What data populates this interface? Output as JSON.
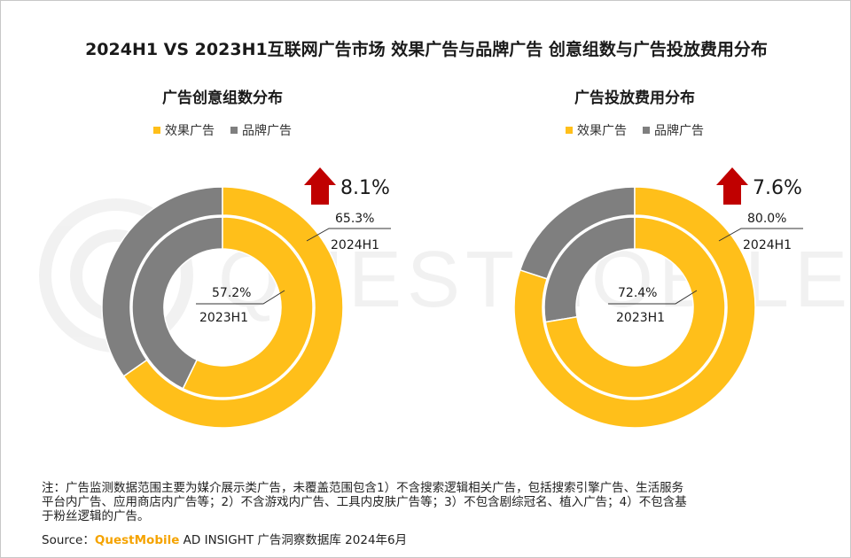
{
  "title": "2024H1 VS 2023H1互联网广告市场 效果广告与品牌广告 创意组数与广告投放费用分布",
  "colors": {
    "performance": "#FFBF1A",
    "brand": "#7F7F7F",
    "arrow": "#C00000"
  },
  "watermark_text": "QUESTMOBILE",
  "notes": [
    "注：广告监测数据范围主要为媒介展示类广告，未覆盖范围包含1）不含搜索逻辑相关广告，包括搜索引擎广告、生活服务",
    "平台内广告、应用商店内广告等；2）不含游戏内广告、工具内皮肤广告等；3）不包含剧综冠名、植入广告；4）不包含基",
    "于粉丝逻辑的广告。"
  ],
  "source": {
    "label": "Source：",
    "brand": "QuestMobile",
    "text": " AD INSIGHT 广告洞察数据库 2024年6月"
  },
  "chart_data": [
    {
      "type": "pie",
      "title": "广告创意组数分布",
      "legend": [
        "效果广告",
        "品牌广告"
      ],
      "legend_position": "top",
      "series": [
        {
          "name": "2024H1",
          "values": [
            65.3,
            34.7
          ]
        },
        {
          "name": "2023H1",
          "values": [
            57.2,
            42.8
          ]
        }
      ],
      "labels": {
        "outer_value": "65.3%",
        "outer_year": "2024H1",
        "inner_value": "57.2%",
        "inner_year": "2023H1"
      },
      "change": "8.1%"
    },
    {
      "type": "pie",
      "title": "广告投放费用分布",
      "legend": [
        "效果广告",
        "品牌广告"
      ],
      "legend_position": "top",
      "series": [
        {
          "name": "2024H1",
          "values": [
            80.0,
            20.0
          ]
        },
        {
          "name": "2023H1",
          "values": [
            72.4,
            27.6
          ]
        }
      ],
      "labels": {
        "outer_value": "80.0%",
        "outer_year": "2024H1",
        "inner_value": "72.4%",
        "inner_year": "2023H1"
      },
      "change": "7.6%"
    }
  ]
}
